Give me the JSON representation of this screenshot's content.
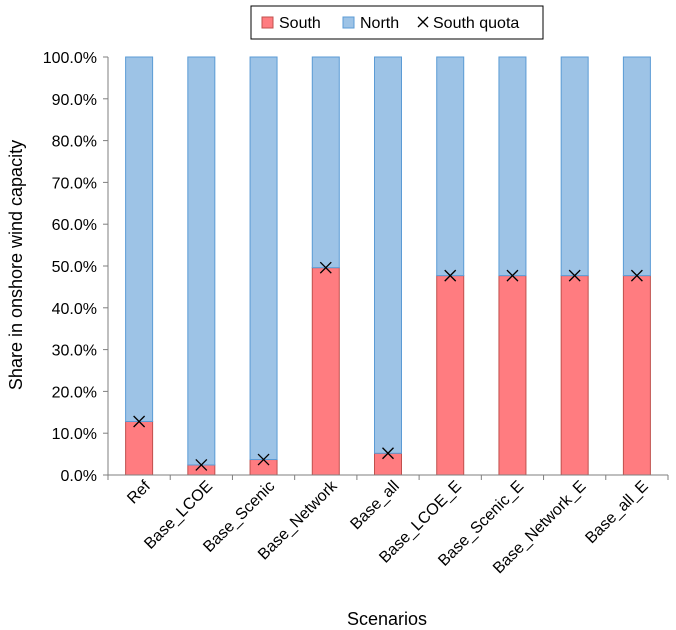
{
  "chart_data": {
    "type": "bar",
    "stacked": true,
    "title": "",
    "xlabel": "Scenarios",
    "ylabel": "Share in onshore wind capacity",
    "ylim": [
      0,
      100
    ],
    "y_tick_format": "percent_1dp",
    "y_ticks": [
      "0.0%",
      "10.0%",
      "20.0%",
      "30.0%",
      "40.0%",
      "50.0%",
      "60.0%",
      "70.0%",
      "80.0%",
      "90.0%",
      "100.0%"
    ],
    "categories": [
      "Ref",
      "Base_LCOE",
      "Base_Scenic",
      "Base_Network",
      "Base_all",
      "Base_LCOE_E",
      "Base_Scenic_E",
      "Base_Network_E",
      "Base_all_E"
    ],
    "series": [
      {
        "name": "South",
        "type": "bar",
        "color": "#ff7c80",
        "values": [
          12.8,
          2.4,
          3.7,
          49.6,
          5.2,
          47.7,
          47.7,
          47.7,
          47.7
        ]
      },
      {
        "name": "North",
        "type": "bar",
        "color": "#9dc3e6",
        "values": [
          87.2,
          97.6,
          96.3,
          50.4,
          94.8,
          52.3,
          52.3,
          52.3,
          52.3
        ]
      },
      {
        "name": "South quota",
        "type": "marker",
        "marker": "x",
        "values": [
          12.8,
          2.4,
          3.7,
          49.6,
          5.2,
          47.7,
          47.7,
          47.7,
          47.7
        ]
      }
    ],
    "legend_position": "top-center",
    "grid": false
  }
}
